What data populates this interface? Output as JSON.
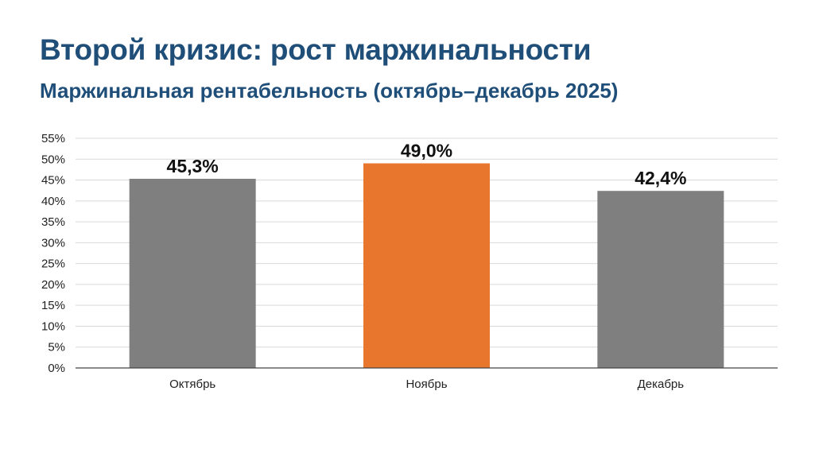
{
  "header": {
    "title": "Второй кризис: рост маржинальности",
    "subtitle": "Маржинальная рентабельность (октябрь–декабрь 2025)"
  },
  "chart_data": {
    "type": "bar",
    "title": "Второй кризис: рост маржинальности",
    "subtitle": "Маржинальная рентабельность (октябрь–декабрь 2025)",
    "categories": [
      "Октябрь",
      "Ноябрь",
      "Декабрь"
    ],
    "values": [
      45.3,
      49.0,
      42.4
    ],
    "data_labels": [
      "45,3%",
      "49,0%",
      "42,4%"
    ],
    "bar_colors": [
      "#7f7f7f",
      "#e8762d",
      "#7f7f7f"
    ],
    "xlabel": "",
    "ylabel": "",
    "ylim": [
      0,
      55
    ],
    "yticks": [
      0,
      5,
      10,
      15,
      20,
      25,
      30,
      35,
      40,
      45,
      50,
      55
    ],
    "ytick_labels": [
      "0%",
      "5%",
      "10%",
      "15%",
      "20%",
      "25%",
      "30%",
      "35%",
      "40%",
      "45%",
      "50%",
      "55%"
    ],
    "grid": true,
    "legend": "none"
  },
  "colors": {
    "title": "#1f4e79",
    "grid": "#d9d9d9",
    "axis": "#444444"
  }
}
